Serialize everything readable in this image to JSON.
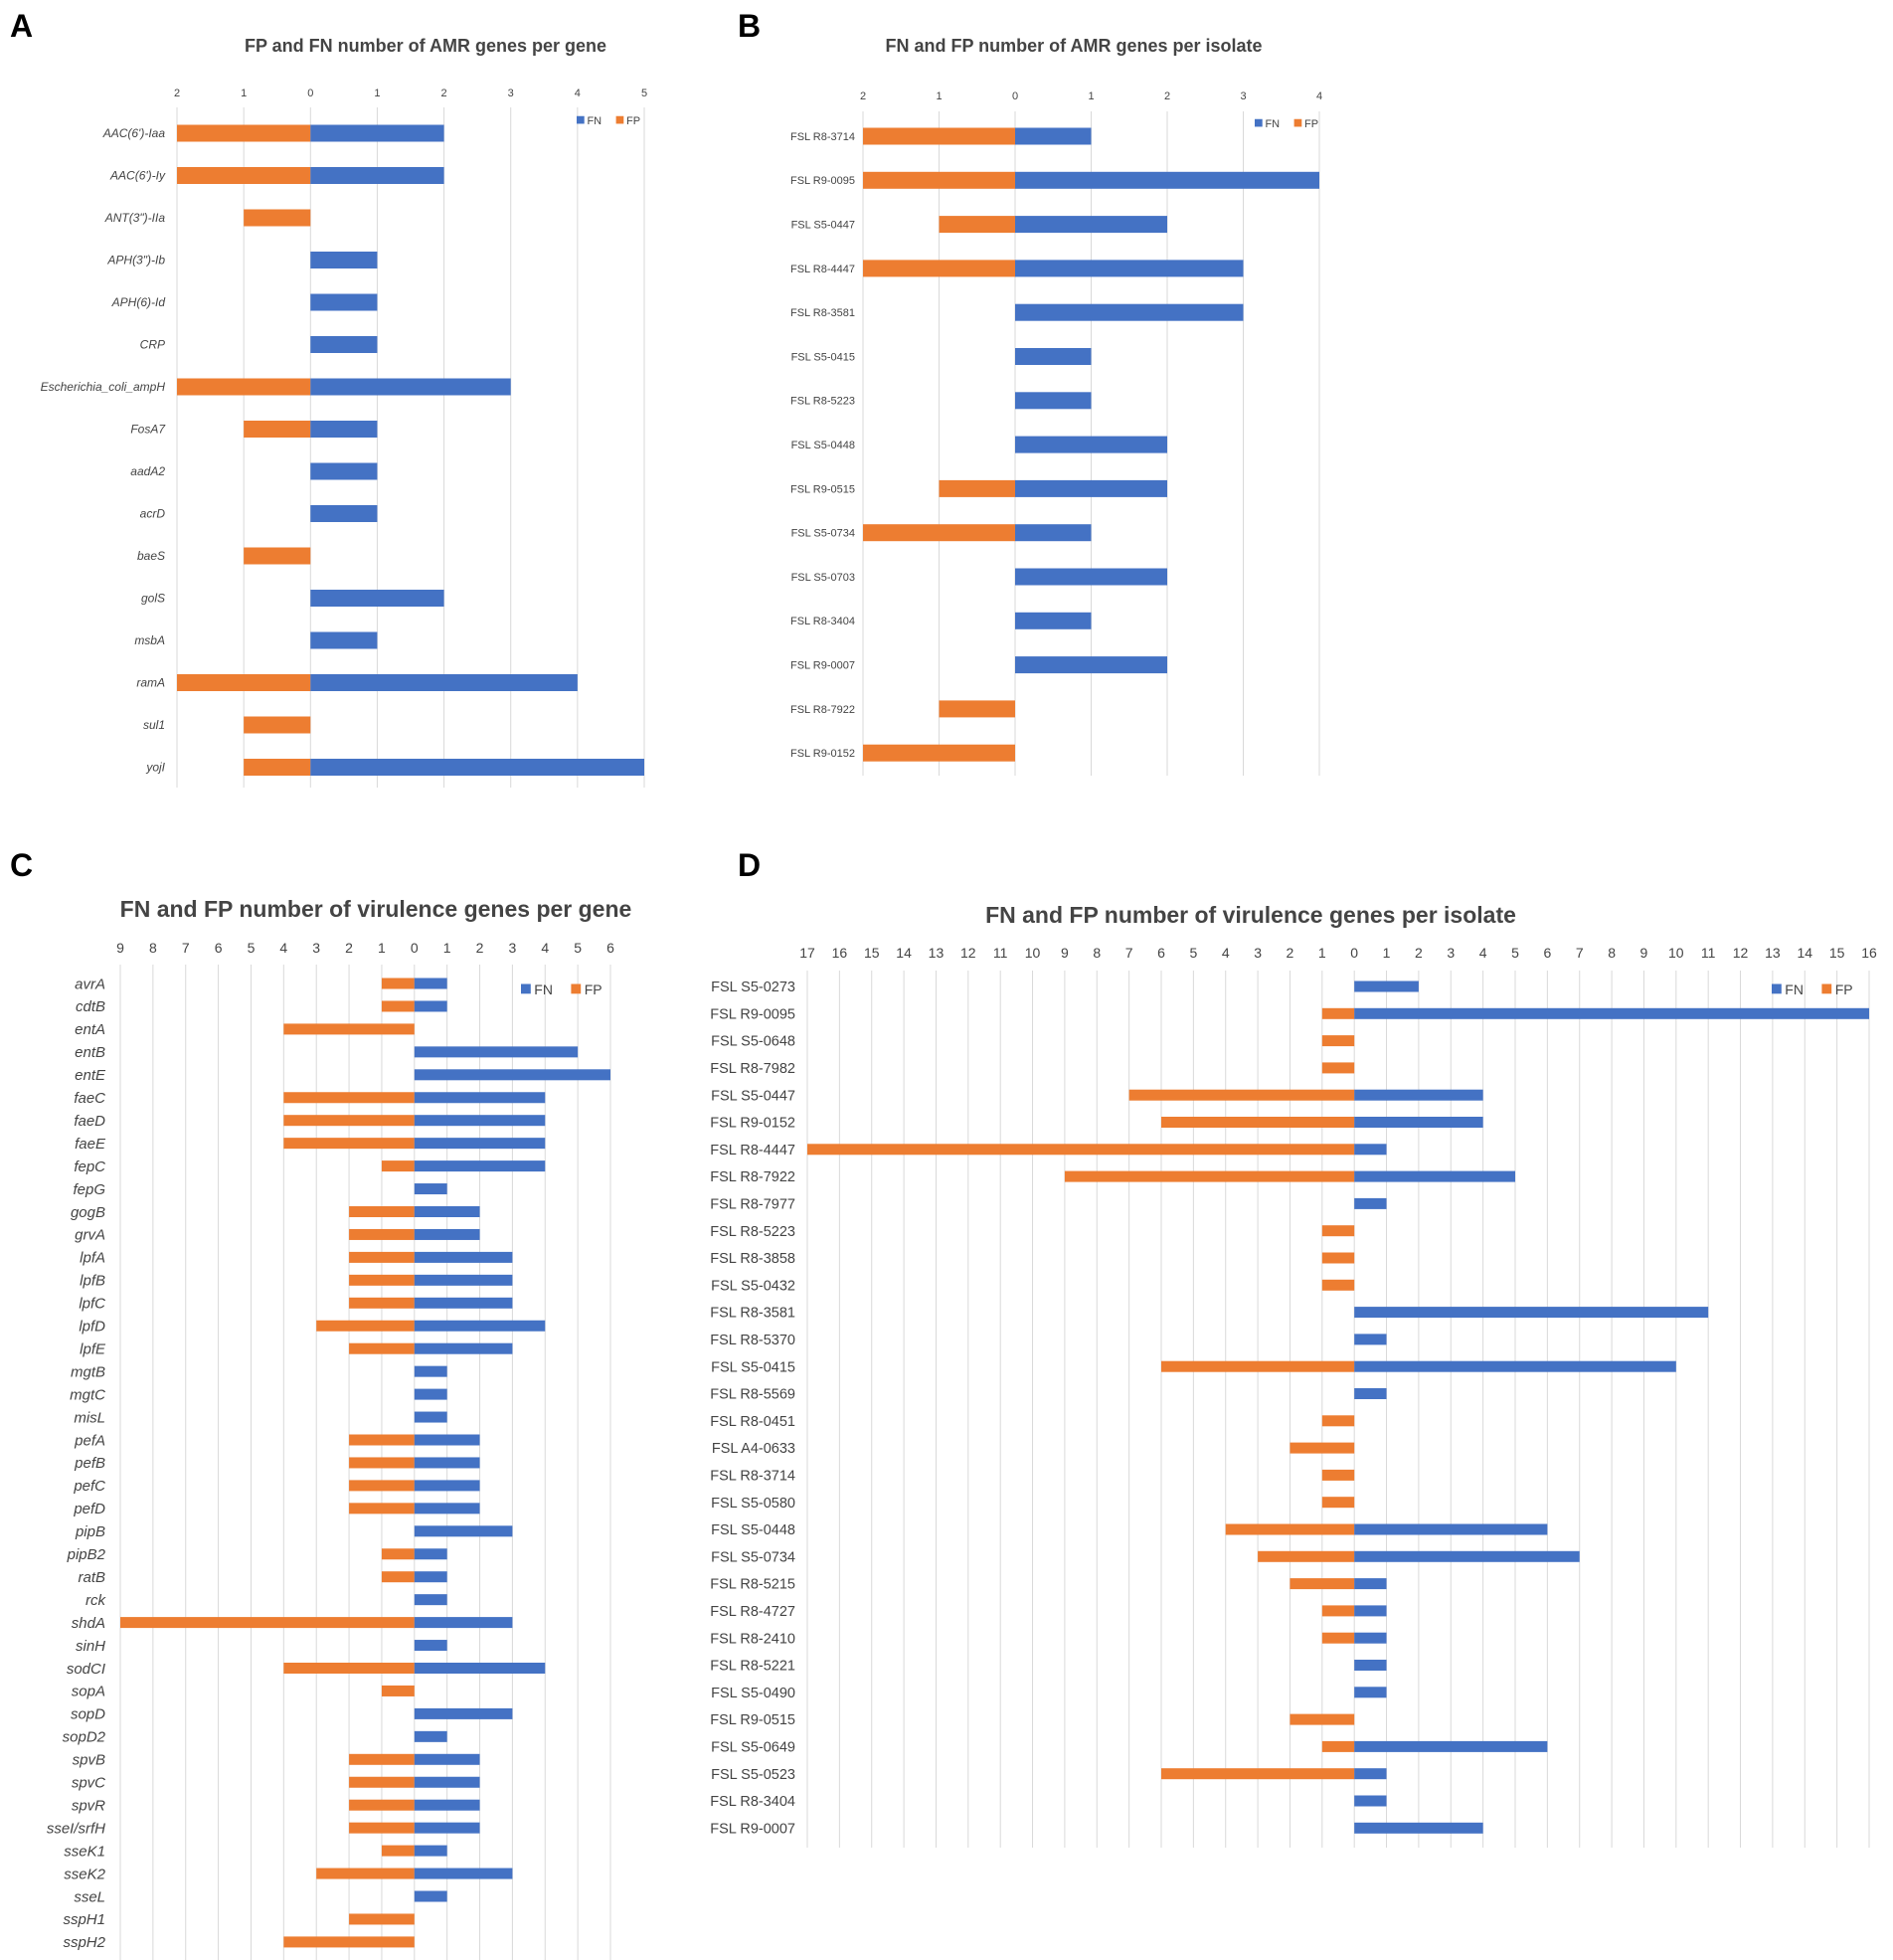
{
  "figure": {
    "colors": {
      "fn": "#4472C4",
      "fp": "#ED7D31",
      "grid": "#d9d9d9"
    }
  },
  "chart_data": [
    {
      "panel": "A",
      "type": "bar",
      "orientation": "horizontal-diverging",
      "title": "FP and FN number of AMR genes per gene",
      "legend": [
        "FN",
        "FP"
      ],
      "legend_position": "top-right",
      "label_style": "italic",
      "xlim": [
        -2,
        5
      ],
      "ticks": [
        -2,
        -1,
        0,
        1,
        2,
        3,
        4,
        5
      ],
      "tick_labels": [
        "2",
        "1",
        "0",
        "1",
        "2",
        "3",
        "4",
        "5"
      ],
      "categories": [
        "AAC(6')-Iaa",
        "AAC(6')-Iy",
        "ANT(3\")-IIa",
        "APH(3\")-Ib",
        "APH(6)-Id",
        "CRP",
        "Escherichia_coli_ampH",
        "FosA7",
        "aadA2",
        "acrD",
        "baeS",
        "golS",
        "msbA",
        "ramA",
        "sul1",
        "yojI"
      ],
      "series": [
        {
          "name": "FN",
          "values": [
            2,
            2,
            0,
            1,
            1,
            1,
            3,
            1,
            1,
            1,
            0,
            2,
            1,
            4,
            0,
            5
          ]
        },
        {
          "name": "FP",
          "values": [
            2,
            2,
            1,
            0,
            0,
            0,
            2,
            1,
            0,
            0,
            1,
            0,
            0,
            2,
            1,
            1
          ]
        }
      ]
    },
    {
      "panel": "B",
      "type": "bar",
      "orientation": "horizontal-diverging",
      "title": "FN and FP number of AMR genes per isolate",
      "legend": [
        "FN",
        "FP"
      ],
      "legend_position": "top-right",
      "label_style": "normal",
      "xlim": [
        -2,
        4
      ],
      "ticks": [
        -2,
        -1,
        0,
        1,
        2,
        3,
        4
      ],
      "tick_labels": [
        "2",
        "1",
        "0",
        "1",
        "2",
        "3",
        "4"
      ],
      "categories": [
        "FSL R8-3714",
        "FSL R9-0095",
        "FSL S5-0447",
        "FSL R8-4447",
        "FSL R8-3581",
        "FSL S5-0415",
        "FSL R8-5223",
        "FSL S5-0448",
        "FSL R9-0515",
        "FSL S5-0734",
        "FSL S5-0703",
        "FSL R8-3404",
        "FSL R9-0007",
        "FSL R8-7922",
        "FSL R9-0152"
      ],
      "series": [
        {
          "name": "FN",
          "values": [
            1,
            4,
            2,
            3,
            3,
            1,
            1,
            2,
            2,
            1,
            2,
            1,
            2,
            0,
            0
          ]
        },
        {
          "name": "FP",
          "values": [
            2,
            2,
            1,
            2,
            0,
            0,
            0,
            0,
            1,
            2,
            0,
            0,
            0,
            1,
            2
          ]
        }
      ]
    },
    {
      "panel": "C",
      "type": "bar",
      "orientation": "horizontal-diverging",
      "title": "FN and FP number of virulence genes per gene",
      "legend": [
        "FN",
        "FP"
      ],
      "legend_position": "top-right",
      "label_style": "italic",
      "xlim": [
        -9,
        6
      ],
      "ticks": [
        -9,
        -8,
        -7,
        -6,
        -5,
        -4,
        -3,
        -2,
        -1,
        0,
        1,
        2,
        3,
        4,
        5,
        6
      ],
      "tick_labels": [
        "9",
        "8",
        "7",
        "6",
        "5",
        "4",
        "3",
        "2",
        "1",
        "0",
        "1",
        "2",
        "3",
        "4",
        "5",
        "6"
      ],
      "categories": [
        "avrA",
        "cdtB",
        "entA",
        "entB",
        "entE",
        "faeC",
        "faeD",
        "faeE",
        "fepC",
        "fepG",
        "gogB",
        "grvA",
        "lpfA",
        "lpfB",
        "lpfC",
        "lpfD",
        "lpfE",
        "mgtB",
        "mgtC",
        "misL",
        "pefA",
        "pefB",
        "pefC",
        "pefD",
        "pipB",
        "pipB2",
        "ratB",
        "rck",
        "shdA",
        "sinH",
        "sodCI",
        "sopA",
        "sopD",
        "sopD2",
        "spvB",
        "spvC",
        "spvR",
        "sseI/srfH",
        "sseK1",
        "sseK2",
        "sseL",
        "sspH1",
        "sspH2"
      ],
      "series": [
        {
          "name": "FN",
          "values": [
            1,
            1,
            0,
            5,
            6,
            4,
            4,
            4,
            4,
            1,
            2,
            2,
            3,
            3,
            3,
            4,
            3,
            1,
            1,
            1,
            2,
            2,
            2,
            2,
            3,
            1,
            1,
            1,
            3,
            1,
            4,
            0,
            3,
            1,
            2,
            2,
            2,
            2,
            1,
            3,
            1,
            0,
            0
          ]
        },
        {
          "name": "FP",
          "values": [
            1,
            1,
            4,
            0,
            0,
            4,
            4,
            4,
            1,
            0,
            2,
            2,
            2,
            2,
            2,
            3,
            2,
            0,
            0,
            0,
            2,
            2,
            2,
            2,
            0,
            1,
            1,
            0,
            9,
            0,
            4,
            1,
            0,
            0,
            2,
            2,
            2,
            2,
            1,
            3,
            0,
            2,
            4
          ]
        }
      ]
    },
    {
      "panel": "D",
      "type": "bar",
      "orientation": "horizontal-diverging",
      "title": "FN and FP number of virulence genes per isolate",
      "legend": [
        "FN",
        "FP"
      ],
      "legend_position": "top-right",
      "label_style": "normal",
      "xlim": [
        -17,
        16
      ],
      "ticks": [
        -17,
        -16,
        -15,
        -14,
        -13,
        -12,
        -11,
        -10,
        -9,
        -8,
        -7,
        -6,
        -5,
        -4,
        -3,
        -2,
        -1,
        0,
        1,
        2,
        3,
        4,
        5,
        6,
        7,
        8,
        9,
        10,
        11,
        12,
        13,
        14,
        15,
        16
      ],
      "tick_labels": [
        "17",
        "16",
        "15",
        "14",
        "13",
        "12",
        "11",
        "10",
        "9",
        "8",
        "7",
        "6",
        "5",
        "4",
        "3",
        "2",
        "1",
        "0",
        "1",
        "2",
        "3",
        "4",
        "5",
        "6",
        "7",
        "8",
        "9",
        "10",
        "11",
        "12",
        "13",
        "14",
        "15",
        "16"
      ],
      "categories": [
        "FSL S5-0273",
        "FSL R9-0095",
        "FSL S5-0648",
        "FSL R8-7982",
        "FSL S5-0447",
        "FSL R9-0152",
        "FSL R8-4447",
        "FSL R8-7922",
        "FSL R8-7977",
        "FSL R8-5223",
        "FSL R8-3858",
        "FSL S5-0432",
        "FSL R8-3581",
        "FSL R8-5370",
        "FSL S5-0415",
        "FSL R8-5569",
        "FSL R8-0451",
        "FSL A4-0633",
        "FSL R8-3714",
        "FSL S5-0580",
        "FSL S5-0448",
        "FSL S5-0734",
        "FSL R8-5215",
        "FSL R8-4727",
        "FSL R8-2410",
        "FSL R8-5221",
        "FSL S5-0490",
        "FSL R9-0515",
        "FSL S5-0649",
        "FSL S5-0523",
        "FSL R8-3404",
        "FSL R9-0007"
      ],
      "series": [
        {
          "name": "FN",
          "values": [
            2,
            16,
            0,
            0,
            4,
            4,
            1,
            5,
            1,
            0,
            0,
            0,
            11,
            1,
            10,
            1,
            0,
            0,
            0,
            0,
            6,
            7,
            1,
            1,
            1,
            1,
            1,
            0,
            6,
            1,
            1,
            4
          ]
        },
        {
          "name": "FP",
          "values": [
            0,
            1,
            1,
            1,
            7,
            6,
            17,
            9,
            0,
            1,
            1,
            1,
            0,
            0,
            6,
            0,
            1,
            2,
            1,
            1,
            4,
            3,
            2,
            1,
            1,
            0,
            0,
            2,
            1,
            6,
            0,
            0
          ]
        }
      ]
    }
  ]
}
